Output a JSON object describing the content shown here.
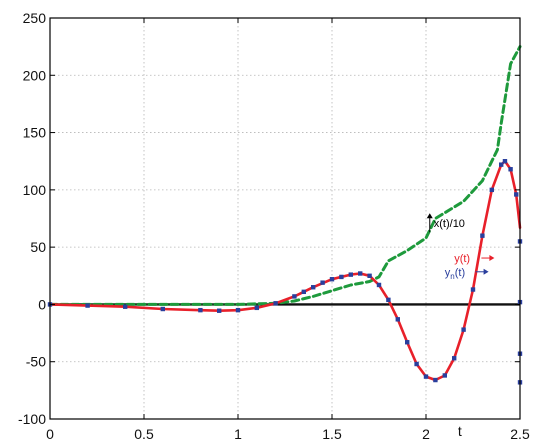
{
  "chart_data": {
    "type": "line",
    "title": "",
    "xlabel": "t",
    "ylabel": "",
    "xlim": [
      0,
      2.5
    ],
    "ylim": [
      -100,
      250
    ],
    "grid": true,
    "xticks": [
      "0",
      "0.5",
      "1",
      "1.5",
      "2",
      "2.5"
    ],
    "yticks": [
      "-100",
      "-50",
      "0",
      "50",
      "100",
      "150",
      "200",
      "250"
    ],
    "xtick_values": [
      0,
      0.5,
      1,
      1.5,
      2,
      2.5
    ],
    "ytick_values": [
      -100,
      -50,
      0,
      50,
      100,
      150,
      200,
      250
    ],
    "zero_line": 0,
    "colors": {
      "y": "#e8202a",
      "x10": "#1e9a3c",
      "yn": "#2a3f9d",
      "axis": "#000000",
      "grid": "#b5b5b5",
      "zero": "#111111"
    },
    "series": [
      {
        "key": "y",
        "style": "solid",
        "x": [
          0,
          0.2,
          0.4,
          0.6,
          0.8,
          0.9,
          1.0,
          1.1,
          1.2,
          1.3,
          1.4,
          1.5,
          1.6,
          1.65,
          1.7,
          1.75,
          1.8,
          1.85,
          1.9,
          1.95,
          2.0,
          2.05,
          2.1,
          2.15,
          2.2,
          2.25,
          2.3,
          2.35,
          2.4,
          2.42,
          2.45,
          2.48,
          2.5
        ],
        "y": [
          0,
          -1,
          -2,
          -4,
          -5,
          -5.5,
          -5,
          -3,
          1,
          7,
          15,
          22,
          26,
          27,
          25,
          17,
          4,
          -13,
          -33,
          -52,
          -63,
          -66,
          -62,
          -47,
          -22,
          13,
          60,
          100,
          122,
          125,
          118,
          96,
          67
        ]
      },
      {
        "key": "x10",
        "style": "dashed",
        "x": [
          0,
          0.4,
          0.8,
          1.0,
          1.2,
          1.3,
          1.4,
          1.5,
          1.6,
          1.7,
          1.75,
          1.8,
          1.9,
          2.0,
          2.05,
          2.1,
          2.2,
          2.25,
          2.3,
          2.35,
          2.38,
          2.4,
          2.45,
          2.5
        ],
        "y": [
          0,
          0,
          0,
          0,
          1,
          3,
          7,
          12,
          17,
          20,
          24,
          38,
          47,
          58,
          75,
          80,
          90,
          99,
          108,
          125,
          135,
          158,
          210,
          225
        ]
      },
      {
        "key": "yn",
        "style": "markers",
        "x": [
          0,
          0.2,
          0.4,
          0.6,
          0.8,
          0.9,
          1.0,
          1.1,
          1.2,
          1.3,
          1.35,
          1.4,
          1.45,
          1.5,
          1.55,
          1.6,
          1.65,
          1.7,
          1.75,
          1.8,
          1.85,
          1.9,
          1.95,
          2.0,
          2.05,
          2.1,
          2.15,
          2.2,
          2.25,
          2.3,
          2.35,
          2.4,
          2.42,
          2.45,
          2.48,
          2.5,
          2.5,
          2.5,
          2.5
        ],
        "y": [
          0,
          -1,
          -2,
          -4,
          -5,
          -5.5,
          -5,
          -3,
          1,
          7,
          11,
          15,
          19,
          22,
          24,
          26,
          27,
          25,
          17,
          4,
          -13,
          -33,
          -52,
          -63,
          -66,
          -62,
          -47,
          -22,
          13,
          60,
          100,
          122,
          125,
          118,
          96,
          55,
          2,
          -43,
          -68
        ]
      }
    ],
    "annotations": [
      {
        "key": "x10",
        "text": "x(t)/10",
        "x": 2.02,
        "y": 70
      },
      {
        "key": "y",
        "text": "y(t)",
        "x": 2.15,
        "y": 37
      },
      {
        "key": "yn",
        "text": "y",
        "subscript": "n",
        "suffix": "(t)",
        "x": 2.1,
        "y": 25
      }
    ]
  }
}
